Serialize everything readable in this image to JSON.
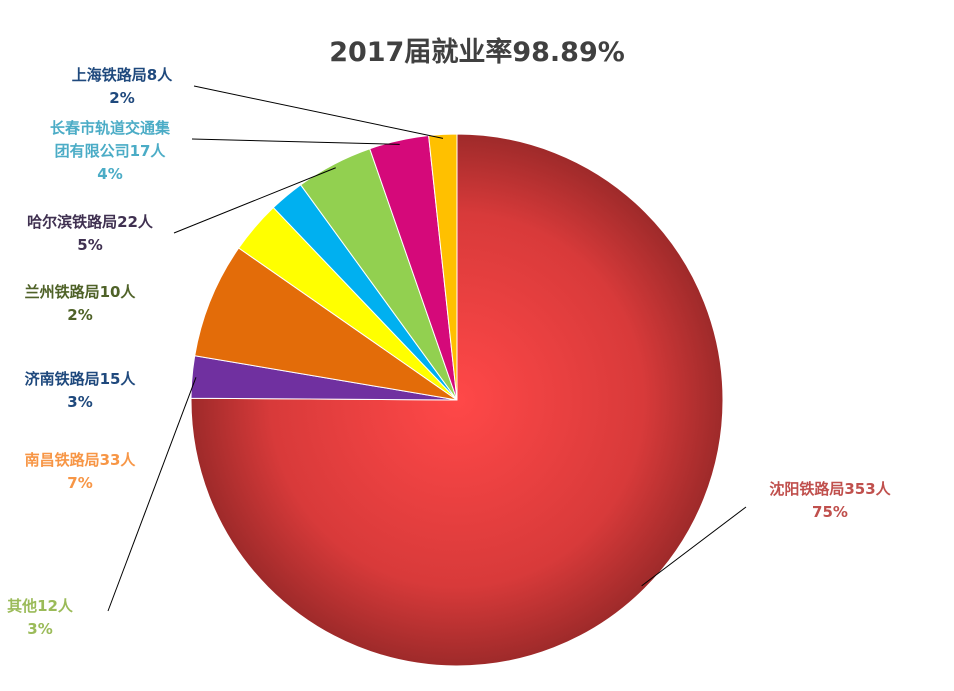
{
  "chart_data": {
    "type": "pie",
    "title": "2017届就业率98.89%",
    "slices": [
      {
        "name": "沈阳铁路局",
        "value": 353,
        "name_line": "沈阳铁路局353人",
        "percent": "75%",
        "color": "#e8373a",
        "label_color": "#c0504d"
      },
      {
        "name": "其他",
        "value": 12,
        "name_line": "其他12人",
        "percent": "3%",
        "color": "#7030a0",
        "label_color": "#9bbb59"
      },
      {
        "name": "南昌铁路局",
        "value": 33,
        "name_line": "南昌铁路局33人",
        "percent": "7%",
        "color": "#e36c09",
        "label_color": "#f79646"
      },
      {
        "name": "济南铁路局",
        "value": 15,
        "name_line": "济南铁路局15人",
        "percent": "3%",
        "color": "#ffff00",
        "label_color": "#1f497d"
      },
      {
        "name": "兰州铁路局",
        "value": 10,
        "name_line": "兰州铁路局10人",
        "percent": "2%",
        "color": "#00b0f0",
        "label_color": "#4f6228"
      },
      {
        "name": "哈尔滨铁路局",
        "value": 22,
        "name_line": "哈尔滨铁路局22人",
        "percent": "5%",
        "color": "#92d050",
        "label_color": "#403151"
      },
      {
        "name": "长春市轨道交通集团有限公司",
        "value": 17,
        "name_lines": [
          "长春市轨道交通集",
          "团有限公司17人"
        ],
        "percent": "4%",
        "color": "#d5097a",
        "label_color": "#4bacc6"
      },
      {
        "name": "上海铁路局",
        "value": 8,
        "name_line": "上海铁路局8人",
        "percent": "2%",
        "color": "#ffc000",
        "label_color": "#1f497d"
      }
    ]
  }
}
